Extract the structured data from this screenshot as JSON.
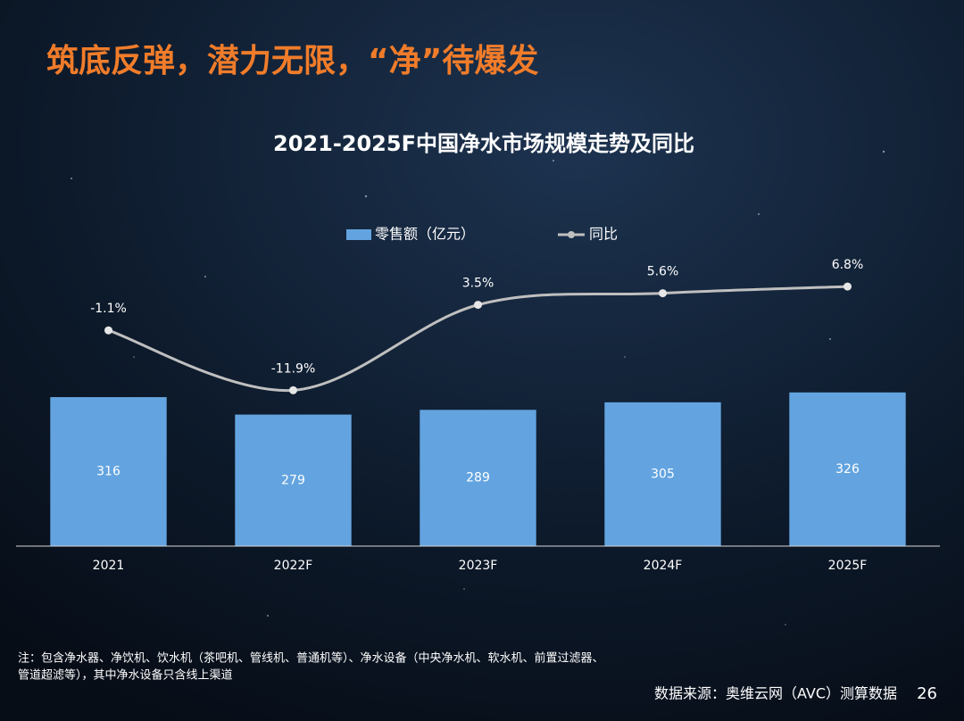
{
  "headline": "筑底反弹，潜力无限，“净”待爆发",
  "chart_data": {
    "type": "bar-line",
    "title": "2021-2025F中国净水市场规模走势及同比",
    "categories": [
      "2021",
      "2022F",
      "2023F",
      "2024F",
      "2025F"
    ],
    "series": [
      {
        "name": "零售额（亿元）",
        "type": "bar",
        "color": "#63a4e0",
        "values": [
          316,
          279,
          289,
          305,
          326
        ]
      },
      {
        "name": "同比",
        "type": "line",
        "axis": "y2",
        "color": "#bfbfbf",
        "values": [
          -1.1,
          -11.9,
          3.5,
          5.6,
          6.8
        ],
        "value_labels": [
          "-1.1%",
          "-11.9%",
          "3.5%",
          "5.6%",
          "6.8%"
        ]
      }
    ],
    "ylim": [
      0,
      600
    ],
    "y2lim": [
      -40,
      11
    ],
    "legend": "top"
  },
  "note": [
    "注：包含净水器、净饮机、饮水机（茶吧机、管线机、普通机等）、净水设备（中央净水机、软水机、前置过滤器、",
    "管道超滤等），其中净水设备只含线上渠道"
  ],
  "source": "数据来源：奥维云网（AVC）测算数据",
  "page_number": "26"
}
